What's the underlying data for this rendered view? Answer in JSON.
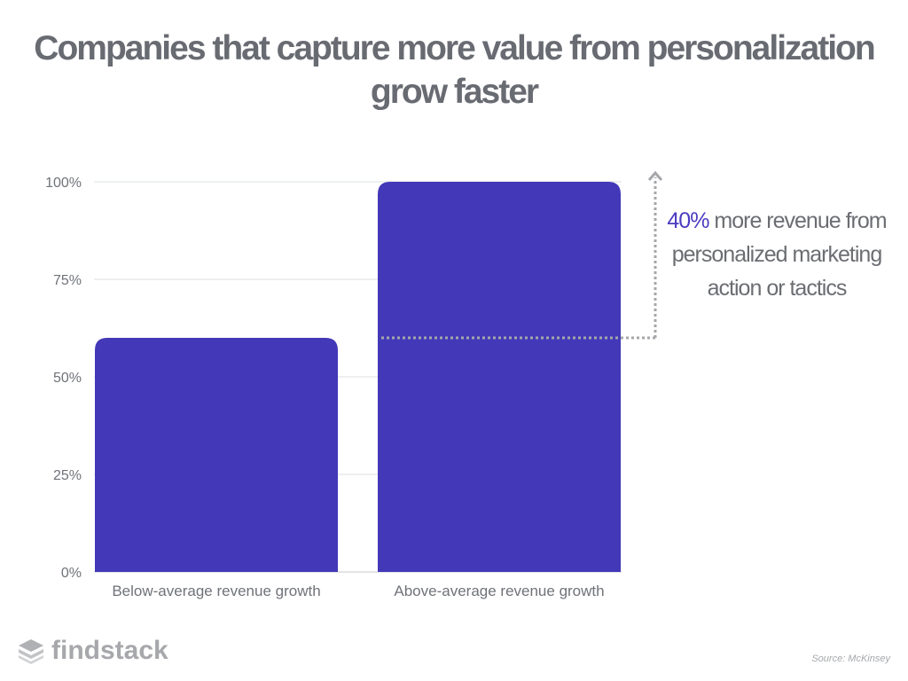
{
  "title": "Companies that capture more value from personalization grow faster",
  "annotation": {
    "highlight": "40%",
    "text": "more revenue from personalized marketing action or tactics"
  },
  "logo": {
    "text": "findstack"
  },
  "source": "Source: McKinsey",
  "colors": {
    "bar": "#4338b8",
    "grid": "#dedfe2",
    "axis_text": "#6f7278",
    "annotation_line": "#a5a7aa",
    "accent": "#4a3cc0"
  },
  "chart_data": {
    "type": "bar",
    "categories": [
      "Below-average revenue growth",
      "Above-average revenue growth"
    ],
    "values": [
      60,
      100
    ],
    "ylim": [
      0,
      100
    ],
    "yticks": [
      0,
      25,
      50,
      75,
      100
    ],
    "ytick_labels": [
      "0%",
      "25%",
      "50%",
      "75%",
      "100%"
    ],
    "grid": true,
    "reference_line_value": 60
  }
}
